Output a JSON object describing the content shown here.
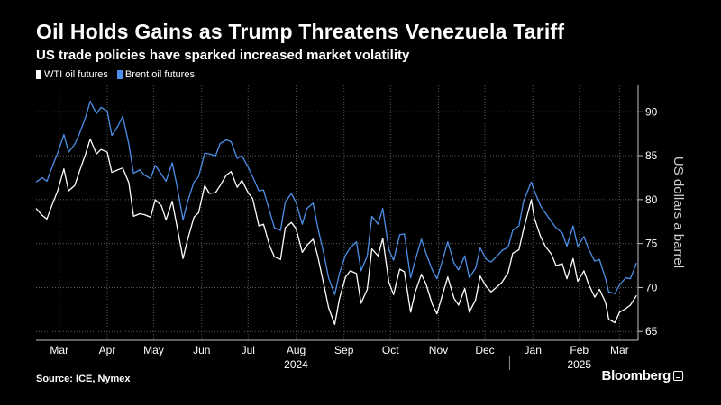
{
  "title": "Oil Holds Gains as Trump Threatens Venezuela Tariff",
  "subtitle": "US trade policies have sparked increased market volatility",
  "source": "Source: ICE, Nymex",
  "brand": "Bloomberg",
  "chart_data": {
    "type": "line",
    "title": "Oil Holds Gains as Trump Threatens Venezuela Tariff",
    "subtitle": "US trade policies have sparked increased market volatility",
    "ylabel": "US dollars a barrel",
    "ylim": [
      64,
      93
    ],
    "yticks": [
      65,
      70,
      75,
      80,
      85,
      90
    ],
    "xlim": [
      "2024-03-01",
      "2025-03-25"
    ],
    "month_ticks": [
      {
        "label": "Mar",
        "date": "2024-03-16"
      },
      {
        "label": "Apr",
        "date": "2024-04-16"
      },
      {
        "label": "May",
        "date": "2024-05-16"
      },
      {
        "label": "Jun",
        "date": "2024-06-16"
      },
      {
        "label": "Jul",
        "date": "2024-07-16"
      },
      {
        "label": "Aug",
        "date": "2024-08-16"
      },
      {
        "label": "Sep",
        "date": "2024-09-16"
      },
      {
        "label": "Oct",
        "date": "2024-10-16"
      },
      {
        "label": "Nov",
        "date": "2024-11-16"
      },
      {
        "label": "Dec",
        "date": "2024-12-16"
      },
      {
        "label": "Jan",
        "date": "2025-01-16"
      },
      {
        "label": "Feb",
        "date": "2025-02-15"
      },
      {
        "label": "Mar",
        "date": "2025-03-13"
      }
    ],
    "year_labels": [
      {
        "label": "2024",
        "date": "2024-08-16"
      },
      {
        "label": "2025",
        "date": "2025-02-15"
      }
    ],
    "year_divider": "2025-01-01",
    "grid": true,
    "legend_position": "top-left",
    "series": [
      {
        "name": "WTI oil futures",
        "color": "#ffffff",
        "points": [
          [
            "2024-03-01",
            79.0
          ],
          [
            "2024-03-05",
            78.2
          ],
          [
            "2024-03-08",
            77.8
          ],
          [
            "2024-03-12",
            79.7
          ],
          [
            "2024-03-15",
            81.0
          ],
          [
            "2024-03-19",
            83.5
          ],
          [
            "2024-03-22",
            81.0
          ],
          [
            "2024-03-26",
            81.6
          ],
          [
            "2024-03-29",
            83.2
          ],
          [
            "2024-04-02",
            85.2
          ],
          [
            "2024-04-05",
            86.9
          ],
          [
            "2024-04-09",
            85.2
          ],
          [
            "2024-04-12",
            85.7
          ],
          [
            "2024-04-16",
            85.4
          ],
          [
            "2024-04-19",
            83.1
          ],
          [
            "2024-04-23",
            83.4
          ],
          [
            "2024-04-26",
            83.6
          ],
          [
            "2024-04-30",
            81.9
          ],
          [
            "2024-05-03",
            78.1
          ],
          [
            "2024-05-07",
            78.4
          ],
          [
            "2024-05-10",
            78.3
          ],
          [
            "2024-05-14",
            78.0
          ],
          [
            "2024-05-17",
            80.0
          ],
          [
            "2024-05-21",
            79.3
          ],
          [
            "2024-05-24",
            77.7
          ],
          [
            "2024-05-28",
            79.8
          ],
          [
            "2024-05-31",
            77.0
          ],
          [
            "2024-06-04",
            73.3
          ],
          [
            "2024-06-07",
            75.5
          ],
          [
            "2024-06-11",
            78.0
          ],
          [
            "2024-06-14",
            78.5
          ],
          [
            "2024-06-18",
            81.6
          ],
          [
            "2024-06-21",
            80.7
          ],
          [
            "2024-06-25",
            80.8
          ],
          [
            "2024-06-28",
            81.6
          ],
          [
            "2024-07-02",
            82.8
          ],
          [
            "2024-07-05",
            83.2
          ],
          [
            "2024-07-09",
            81.4
          ],
          [
            "2024-07-12",
            82.2
          ],
          [
            "2024-07-16",
            80.8
          ],
          [
            "2024-07-19",
            80.1
          ],
          [
            "2024-07-23",
            77.0
          ],
          [
            "2024-07-26",
            77.2
          ],
          [
            "2024-07-30",
            74.7
          ],
          [
            "2024-08-02",
            73.5
          ],
          [
            "2024-08-06",
            73.2
          ],
          [
            "2024-08-09",
            76.8
          ],
          [
            "2024-08-13",
            77.4
          ],
          [
            "2024-08-16",
            76.7
          ],
          [
            "2024-08-20",
            74.0
          ],
          [
            "2024-08-23",
            74.8
          ],
          [
            "2024-08-27",
            75.5
          ],
          [
            "2024-08-30",
            73.6
          ],
          [
            "2024-09-03",
            70.3
          ],
          [
            "2024-09-06",
            67.7
          ],
          [
            "2024-09-10",
            65.8
          ],
          [
            "2024-09-13",
            68.7
          ],
          [
            "2024-09-17",
            71.2
          ],
          [
            "2024-09-20",
            71.9
          ],
          [
            "2024-09-24",
            71.6
          ],
          [
            "2024-09-27",
            68.2
          ],
          [
            "2024-10-01",
            69.8
          ],
          [
            "2024-10-04",
            74.4
          ],
          [
            "2024-10-08",
            73.6
          ],
          [
            "2024-10-11",
            75.6
          ],
          [
            "2024-10-15",
            70.6
          ],
          [
            "2024-10-18",
            69.2
          ],
          [
            "2024-10-22",
            72.1
          ],
          [
            "2024-10-25",
            71.8
          ],
          [
            "2024-10-29",
            67.2
          ],
          [
            "2024-11-01",
            69.5
          ],
          [
            "2024-11-05",
            71.5
          ],
          [
            "2024-11-08",
            70.4
          ],
          [
            "2024-11-12",
            68.1
          ],
          [
            "2024-11-15",
            67.0
          ],
          [
            "2024-11-19",
            69.4
          ],
          [
            "2024-11-22",
            71.2
          ],
          [
            "2024-11-26",
            68.8
          ],
          [
            "2024-11-29",
            68.0
          ],
          [
            "2024-12-03",
            69.9
          ],
          [
            "2024-12-06",
            67.2
          ],
          [
            "2024-12-10",
            68.6
          ],
          [
            "2024-12-13",
            71.3
          ],
          [
            "2024-12-17",
            70.1
          ],
          [
            "2024-12-20",
            69.5
          ],
          [
            "2024-12-24",
            70.1
          ],
          [
            "2024-12-27",
            70.6
          ],
          [
            "2024-12-31",
            71.7
          ],
          [
            "2025-01-03",
            73.9
          ],
          [
            "2025-01-07",
            74.3
          ],
          [
            "2025-01-10",
            76.6
          ],
          [
            "2025-01-15",
            80.0
          ],
          [
            "2025-01-17",
            77.9
          ],
          [
            "2025-01-21",
            75.8
          ],
          [
            "2025-01-24",
            74.7
          ],
          [
            "2025-01-28",
            73.8
          ],
          [
            "2025-01-31",
            72.5
          ],
          [
            "2025-02-04",
            72.7
          ],
          [
            "2025-02-07",
            71.0
          ],
          [
            "2025-02-11",
            73.3
          ],
          [
            "2025-02-14",
            70.7
          ],
          [
            "2025-02-18",
            71.9
          ],
          [
            "2025-02-21",
            70.4
          ],
          [
            "2025-02-25",
            68.9
          ],
          [
            "2025-02-28",
            69.8
          ],
          [
            "2025-03-04",
            68.3
          ],
          [
            "2025-03-06",
            66.4
          ],
          [
            "2025-03-10",
            66.0
          ],
          [
            "2025-03-13",
            67.2
          ],
          [
            "2025-03-17",
            67.6
          ],
          [
            "2025-03-20",
            68.0
          ],
          [
            "2025-03-24",
            69.1
          ]
        ]
      },
      {
        "name": "Brent oil futures",
        "color": "#4d8fe8",
        "points": [
          [
            "2024-03-01",
            82.0
          ],
          [
            "2024-03-05",
            82.5
          ],
          [
            "2024-03-08",
            82.1
          ],
          [
            "2024-03-12",
            84.0
          ],
          [
            "2024-03-15",
            85.3
          ],
          [
            "2024-03-19",
            87.4
          ],
          [
            "2024-03-22",
            85.4
          ],
          [
            "2024-03-26",
            86.3
          ],
          [
            "2024-03-29",
            87.5
          ],
          [
            "2024-04-02",
            89.4
          ],
          [
            "2024-04-05",
            91.2
          ],
          [
            "2024-04-09",
            89.8
          ],
          [
            "2024-04-12",
            90.5
          ],
          [
            "2024-04-16",
            90.1
          ],
          [
            "2024-04-19",
            87.3
          ],
          [
            "2024-04-23",
            88.4
          ],
          [
            "2024-04-26",
            89.5
          ],
          [
            "2024-04-30",
            86.3
          ],
          [
            "2024-05-03",
            83.0
          ],
          [
            "2024-05-07",
            83.4
          ],
          [
            "2024-05-10",
            82.8
          ],
          [
            "2024-05-14",
            82.4
          ],
          [
            "2024-05-17",
            83.9
          ],
          [
            "2024-05-21",
            82.9
          ],
          [
            "2024-05-24",
            82.1
          ],
          [
            "2024-05-28",
            84.2
          ],
          [
            "2024-05-31",
            81.6
          ],
          [
            "2024-06-04",
            77.7
          ],
          [
            "2024-06-07",
            79.8
          ],
          [
            "2024-06-11",
            82.0
          ],
          [
            "2024-06-14",
            82.6
          ],
          [
            "2024-06-18",
            85.3
          ],
          [
            "2024-06-21",
            85.2
          ],
          [
            "2024-06-25",
            85.0
          ],
          [
            "2024-06-28",
            86.4
          ],
          [
            "2024-07-02",
            86.8
          ],
          [
            "2024-07-05",
            86.6
          ],
          [
            "2024-07-09",
            84.7
          ],
          [
            "2024-07-12",
            85.0
          ],
          [
            "2024-07-16",
            83.7
          ],
          [
            "2024-07-19",
            82.6
          ],
          [
            "2024-07-23",
            81.0
          ],
          [
            "2024-07-26",
            81.1
          ],
          [
            "2024-07-30",
            78.6
          ],
          [
            "2024-08-02",
            76.8
          ],
          [
            "2024-08-06",
            76.5
          ],
          [
            "2024-08-09",
            79.7
          ],
          [
            "2024-08-13",
            80.7
          ],
          [
            "2024-08-16",
            79.7
          ],
          [
            "2024-08-20",
            77.2
          ],
          [
            "2024-08-23",
            79.0
          ],
          [
            "2024-08-27",
            79.6
          ],
          [
            "2024-08-30",
            76.9
          ],
          [
            "2024-09-03",
            73.8
          ],
          [
            "2024-09-06",
            71.1
          ],
          [
            "2024-09-10",
            69.2
          ],
          [
            "2024-09-13",
            71.6
          ],
          [
            "2024-09-17",
            73.7
          ],
          [
            "2024-09-20",
            74.5
          ],
          [
            "2024-09-24",
            75.2
          ],
          [
            "2024-09-27",
            71.9
          ],
          [
            "2024-10-01",
            73.6
          ],
          [
            "2024-10-04",
            78.1
          ],
          [
            "2024-10-08",
            77.2
          ],
          [
            "2024-10-11",
            79.0
          ],
          [
            "2024-10-15",
            74.3
          ],
          [
            "2024-10-18",
            73.1
          ],
          [
            "2024-10-22",
            76.0
          ],
          [
            "2024-10-25",
            76.1
          ],
          [
            "2024-10-29",
            71.1
          ],
          [
            "2024-11-01",
            73.1
          ],
          [
            "2024-11-05",
            75.5
          ],
          [
            "2024-11-08",
            73.9
          ],
          [
            "2024-11-12",
            72.0
          ],
          [
            "2024-11-15",
            71.0
          ],
          [
            "2024-11-19",
            73.3
          ],
          [
            "2024-11-22",
            75.2
          ],
          [
            "2024-11-26",
            72.8
          ],
          [
            "2024-11-29",
            72.0
          ],
          [
            "2024-12-03",
            73.6
          ],
          [
            "2024-12-06",
            71.1
          ],
          [
            "2024-12-10",
            72.2
          ],
          [
            "2024-12-13",
            74.5
          ],
          [
            "2024-12-17",
            73.2
          ],
          [
            "2024-12-20",
            72.9
          ],
          [
            "2024-12-24",
            73.6
          ],
          [
            "2024-12-27",
            74.2
          ],
          [
            "2024-12-31",
            74.6
          ],
          [
            "2025-01-03",
            76.5
          ],
          [
            "2025-01-07",
            77.0
          ],
          [
            "2025-01-10",
            79.8
          ],
          [
            "2025-01-15",
            82.0
          ],
          [
            "2025-01-17",
            81.0
          ],
          [
            "2025-01-21",
            79.3
          ],
          [
            "2025-01-24",
            78.5
          ],
          [
            "2025-01-28",
            77.5
          ],
          [
            "2025-01-31",
            76.8
          ],
          [
            "2025-02-04",
            76.2
          ],
          [
            "2025-02-07",
            74.7
          ],
          [
            "2025-02-11",
            77.0
          ],
          [
            "2025-02-14",
            74.7
          ],
          [
            "2025-02-18",
            75.8
          ],
          [
            "2025-02-21",
            74.4
          ],
          [
            "2025-02-25",
            73.0
          ],
          [
            "2025-02-28",
            73.2
          ],
          [
            "2025-03-04",
            71.0
          ],
          [
            "2025-03-06",
            69.5
          ],
          [
            "2025-03-10",
            69.3
          ],
          [
            "2025-03-13",
            70.3
          ],
          [
            "2025-03-17",
            71.1
          ],
          [
            "2025-03-20",
            71.0
          ],
          [
            "2025-03-24",
            72.8
          ]
        ]
      }
    ]
  }
}
